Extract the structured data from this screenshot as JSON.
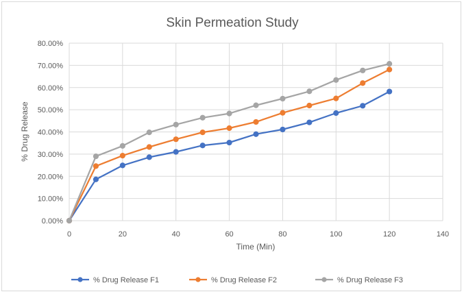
{
  "chart_data": {
    "type": "line",
    "title": "Skin Permeation Study",
    "xlabel": "Time (Min)",
    "ylabel": "% Drug Release",
    "xlim": [
      0,
      140
    ],
    "ylim": [
      0,
      0.8
    ],
    "x_ticks": [
      "0",
      "20",
      "40",
      "60",
      "80",
      "100",
      "120",
      "140"
    ],
    "y_ticks": [
      "0.00%",
      "10.00%",
      "20.00%",
      "30.00%",
      "40.00%",
      "50.00%",
      "60.00%",
      "70.00%",
      "80.00%"
    ],
    "grid": true,
    "legend_position": "bottom",
    "x": [
      0,
      10,
      20,
      30,
      40,
      50,
      60,
      70,
      80,
      90,
      100,
      110,
      120
    ],
    "series": [
      {
        "name": "% Drug Release F1",
        "color": "#4472c4",
        "values": [
          0.0,
          0.186,
          0.249,
          0.286,
          0.31,
          0.339,
          0.352,
          0.39,
          0.411,
          0.443,
          0.485,
          0.518,
          0.582
        ]
      },
      {
        "name": "% Drug Release F2",
        "color": "#ed7d31",
        "values": [
          0.0,
          0.246,
          0.293,
          0.332,
          0.367,
          0.398,
          0.417,
          0.445,
          0.486,
          0.519,
          0.551,
          0.62,
          0.681
        ]
      },
      {
        "name": "% Drug Release F3",
        "color": "#a5a5a5",
        "values": [
          0.0,
          0.29,
          0.337,
          0.398,
          0.433,
          0.464,
          0.483,
          0.52,
          0.55,
          0.583,
          0.634,
          0.677,
          0.707
        ]
      }
    ]
  }
}
